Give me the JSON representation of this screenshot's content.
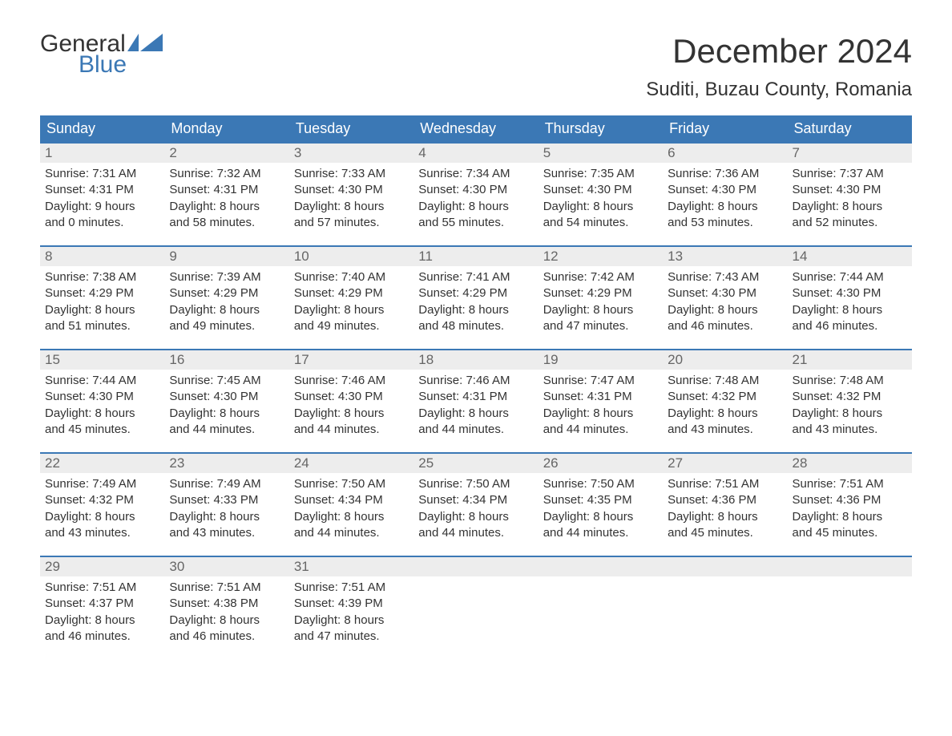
{
  "brand": {
    "word1": "General",
    "word2": "Blue",
    "word1_color": "#333333",
    "word2_color": "#3b78b5",
    "flag_color": "#3b78b5"
  },
  "title": "December 2024",
  "location": "Suditi, Buzau County, Romania",
  "colors": {
    "header_bg": "#3b78b5",
    "header_text": "#ffffff",
    "daynum_bg": "#ededed",
    "daynum_text": "#666666",
    "body_text": "#333333",
    "week_divider": "#3b78b5",
    "page_bg": "#ffffff"
  },
  "typography": {
    "title_fontsize": 42,
    "location_fontsize": 24,
    "weekday_fontsize": 18,
    "daynum_fontsize": 17,
    "body_fontsize": 15,
    "logo_fontsize": 30
  },
  "weekdays": [
    "Sunday",
    "Monday",
    "Tuesday",
    "Wednesday",
    "Thursday",
    "Friday",
    "Saturday"
  ],
  "weeks": [
    [
      {
        "n": "1",
        "sr": "Sunrise: 7:31 AM",
        "ss": "Sunset: 4:31 PM",
        "d1": "Daylight: 9 hours",
        "d2": "and 0 minutes."
      },
      {
        "n": "2",
        "sr": "Sunrise: 7:32 AM",
        "ss": "Sunset: 4:31 PM",
        "d1": "Daylight: 8 hours",
        "d2": "and 58 minutes."
      },
      {
        "n": "3",
        "sr": "Sunrise: 7:33 AM",
        "ss": "Sunset: 4:30 PM",
        "d1": "Daylight: 8 hours",
        "d2": "and 57 minutes."
      },
      {
        "n": "4",
        "sr": "Sunrise: 7:34 AM",
        "ss": "Sunset: 4:30 PM",
        "d1": "Daylight: 8 hours",
        "d2": "and 55 minutes."
      },
      {
        "n": "5",
        "sr": "Sunrise: 7:35 AM",
        "ss": "Sunset: 4:30 PM",
        "d1": "Daylight: 8 hours",
        "d2": "and 54 minutes."
      },
      {
        "n": "6",
        "sr": "Sunrise: 7:36 AM",
        "ss": "Sunset: 4:30 PM",
        "d1": "Daylight: 8 hours",
        "d2": "and 53 minutes."
      },
      {
        "n": "7",
        "sr": "Sunrise: 7:37 AM",
        "ss": "Sunset: 4:30 PM",
        "d1": "Daylight: 8 hours",
        "d2": "and 52 minutes."
      }
    ],
    [
      {
        "n": "8",
        "sr": "Sunrise: 7:38 AM",
        "ss": "Sunset: 4:29 PM",
        "d1": "Daylight: 8 hours",
        "d2": "and 51 minutes."
      },
      {
        "n": "9",
        "sr": "Sunrise: 7:39 AM",
        "ss": "Sunset: 4:29 PM",
        "d1": "Daylight: 8 hours",
        "d2": "and 49 minutes."
      },
      {
        "n": "10",
        "sr": "Sunrise: 7:40 AM",
        "ss": "Sunset: 4:29 PM",
        "d1": "Daylight: 8 hours",
        "d2": "and 49 minutes."
      },
      {
        "n": "11",
        "sr": "Sunrise: 7:41 AM",
        "ss": "Sunset: 4:29 PM",
        "d1": "Daylight: 8 hours",
        "d2": "and 48 minutes."
      },
      {
        "n": "12",
        "sr": "Sunrise: 7:42 AM",
        "ss": "Sunset: 4:29 PM",
        "d1": "Daylight: 8 hours",
        "d2": "and 47 minutes."
      },
      {
        "n": "13",
        "sr": "Sunrise: 7:43 AM",
        "ss": "Sunset: 4:30 PM",
        "d1": "Daylight: 8 hours",
        "d2": "and 46 minutes."
      },
      {
        "n": "14",
        "sr": "Sunrise: 7:44 AM",
        "ss": "Sunset: 4:30 PM",
        "d1": "Daylight: 8 hours",
        "d2": "and 46 minutes."
      }
    ],
    [
      {
        "n": "15",
        "sr": "Sunrise: 7:44 AM",
        "ss": "Sunset: 4:30 PM",
        "d1": "Daylight: 8 hours",
        "d2": "and 45 minutes."
      },
      {
        "n": "16",
        "sr": "Sunrise: 7:45 AM",
        "ss": "Sunset: 4:30 PM",
        "d1": "Daylight: 8 hours",
        "d2": "and 44 minutes."
      },
      {
        "n": "17",
        "sr": "Sunrise: 7:46 AM",
        "ss": "Sunset: 4:30 PM",
        "d1": "Daylight: 8 hours",
        "d2": "and 44 minutes."
      },
      {
        "n": "18",
        "sr": "Sunrise: 7:46 AM",
        "ss": "Sunset: 4:31 PM",
        "d1": "Daylight: 8 hours",
        "d2": "and 44 minutes."
      },
      {
        "n": "19",
        "sr": "Sunrise: 7:47 AM",
        "ss": "Sunset: 4:31 PM",
        "d1": "Daylight: 8 hours",
        "d2": "and 44 minutes."
      },
      {
        "n": "20",
        "sr": "Sunrise: 7:48 AM",
        "ss": "Sunset: 4:32 PM",
        "d1": "Daylight: 8 hours",
        "d2": "and 43 minutes."
      },
      {
        "n": "21",
        "sr": "Sunrise: 7:48 AM",
        "ss": "Sunset: 4:32 PM",
        "d1": "Daylight: 8 hours",
        "d2": "and 43 minutes."
      }
    ],
    [
      {
        "n": "22",
        "sr": "Sunrise: 7:49 AM",
        "ss": "Sunset: 4:32 PM",
        "d1": "Daylight: 8 hours",
        "d2": "and 43 minutes."
      },
      {
        "n": "23",
        "sr": "Sunrise: 7:49 AM",
        "ss": "Sunset: 4:33 PM",
        "d1": "Daylight: 8 hours",
        "d2": "and 43 minutes."
      },
      {
        "n": "24",
        "sr": "Sunrise: 7:50 AM",
        "ss": "Sunset: 4:34 PM",
        "d1": "Daylight: 8 hours",
        "d2": "and 44 minutes."
      },
      {
        "n": "25",
        "sr": "Sunrise: 7:50 AM",
        "ss": "Sunset: 4:34 PM",
        "d1": "Daylight: 8 hours",
        "d2": "and 44 minutes."
      },
      {
        "n": "26",
        "sr": "Sunrise: 7:50 AM",
        "ss": "Sunset: 4:35 PM",
        "d1": "Daylight: 8 hours",
        "d2": "and 44 minutes."
      },
      {
        "n": "27",
        "sr": "Sunrise: 7:51 AM",
        "ss": "Sunset: 4:36 PM",
        "d1": "Daylight: 8 hours",
        "d2": "and 45 minutes."
      },
      {
        "n": "28",
        "sr": "Sunrise: 7:51 AM",
        "ss": "Sunset: 4:36 PM",
        "d1": "Daylight: 8 hours",
        "d2": "and 45 minutes."
      }
    ],
    [
      {
        "n": "29",
        "sr": "Sunrise: 7:51 AM",
        "ss": "Sunset: 4:37 PM",
        "d1": "Daylight: 8 hours",
        "d2": "and 46 minutes."
      },
      {
        "n": "30",
        "sr": "Sunrise: 7:51 AM",
        "ss": "Sunset: 4:38 PM",
        "d1": "Daylight: 8 hours",
        "d2": "and 46 minutes."
      },
      {
        "n": "31",
        "sr": "Sunrise: 7:51 AM",
        "ss": "Sunset: 4:39 PM",
        "d1": "Daylight: 8 hours",
        "d2": "and 47 minutes."
      },
      null,
      null,
      null,
      null
    ]
  ]
}
